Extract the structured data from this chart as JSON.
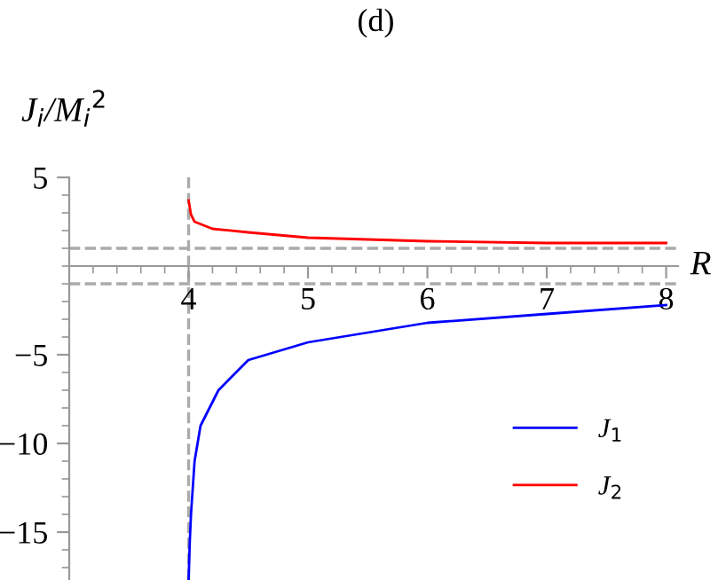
{
  "chart_data": {
    "type": "line",
    "title": "(d)",
    "xlabel": "R",
    "ylabel": "J$_{i}$/M$_{i}$$^{2}$",
    "xlim": [
      3,
      8.1
    ],
    "ylim": [
      -17.7,
      5
    ],
    "xticks": [
      4,
      5,
      6,
      7,
      8
    ],
    "yticks": [
      5,
      -5,
      -10,
      -15
    ],
    "grid": false,
    "legend": "right",
    "marker": "none",
    "line_style": "solid",
    "series": [
      {
        "name": "J$_{1}$",
        "color": "#0000ff",
        "x": [
          4.0,
          4.01,
          4.02,
          4.05,
          4.1,
          4.25,
          4.5,
          5,
          6,
          7,
          8
        ],
        "values": [
          -17.7,
          -15.5,
          -14,
          -11,
          -9,
          -7,
          -5.3,
          -4.3,
          -3.2,
          -2.7,
          -2.2
        ]
      },
      {
        "name": "J$_{2}$",
        "color": "#ff0000",
        "x": [
          4.0,
          4.02,
          4.05,
          4.2,
          4.5,
          5,
          6,
          7,
          8
        ],
        "values": [
          3.7,
          2.9,
          2.5,
          2.1,
          1.9,
          1.6,
          1.4,
          1.3,
          1.3
        ]
      }
    ],
    "ref_lines": [
      {
        "axis": "y",
        "value": 1,
        "color": "#aaaaaa",
        "line_style": "dashed"
      },
      {
        "axis": "y",
        "value": -1,
        "color": "#aaaaaa",
        "line_style": "dashed"
      },
      {
        "axis": "x",
        "value": 4,
        "color": "#aaaaaa",
        "line_style": "dashed"
      }
    ]
  }
}
